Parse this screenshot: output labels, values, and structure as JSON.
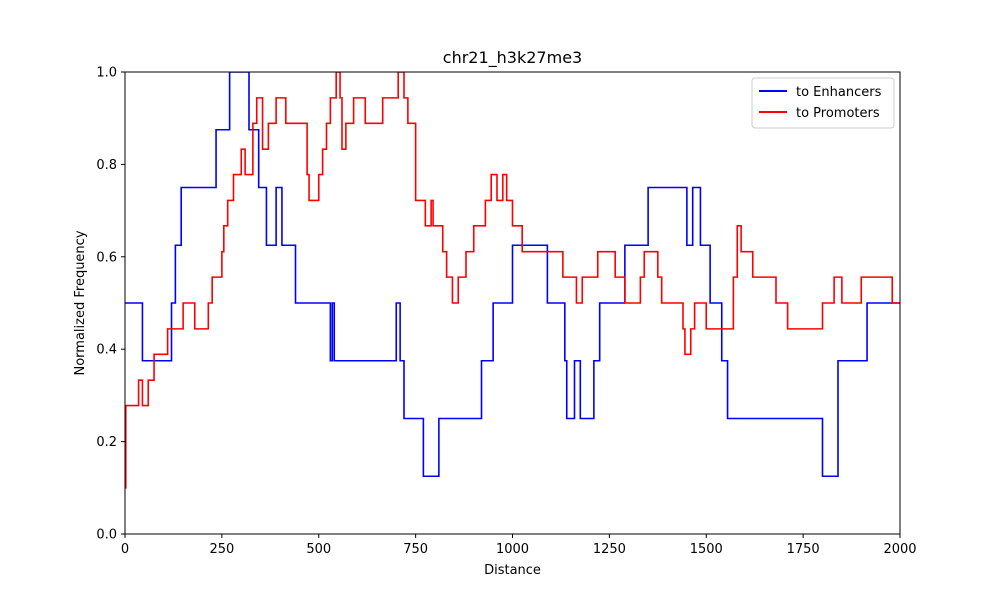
{
  "chart_data": {
    "type": "line",
    "title": "chr21_h3k27me3",
    "xlabel": "Distance",
    "ylabel": "Normalized Frequency",
    "xlim": [
      0,
      2000
    ],
    "ylim": [
      0,
      1.0
    ],
    "xticks": [
      0,
      250,
      500,
      750,
      1000,
      1250,
      1500,
      1750,
      2000
    ],
    "yticks": [
      0.0,
      0.2,
      0.4,
      0.6,
      0.8,
      1.0
    ],
    "ytick_labels": [
      "0.0",
      "0.2",
      "0.4",
      "0.6",
      "0.8",
      "1.0"
    ],
    "grid": false,
    "legend_position": "top-right",
    "series": [
      {
        "name": "to Enhancers",
        "color": "#0000ff",
        "step": true,
        "x": [
          0,
          45,
          120,
          130,
          145,
          235,
          270,
          320,
          345,
          365,
          390,
          405,
          440,
          530,
          535,
          540,
          700,
          710,
          720,
          770,
          810,
          920,
          950,
          1000,
          1090,
          1135,
          1140,
          1160,
          1175,
          1210,
          1225,
          1290,
          1350,
          1450,
          1465,
          1485,
          1510,
          1540,
          1555,
          1800,
          1840,
          1915,
          2000
        ],
        "y": [
          0.5,
          0.375,
          0.5,
          0.625,
          0.75,
          0.875,
          1.0,
          0.875,
          0.75,
          0.625,
          0.75,
          0.625,
          0.5,
          0.375,
          0.5,
          0.375,
          0.5,
          0.375,
          0.25,
          0.125,
          0.25,
          0.375,
          0.5,
          0.625,
          0.5,
          0.375,
          0.25,
          0.375,
          0.25,
          0.375,
          0.5,
          0.625,
          0.75,
          0.625,
          0.75,
          0.625,
          0.5,
          0.375,
          0.25,
          0.125,
          0.375,
          0.5,
          0.5
        ]
      },
      {
        "name": "to Promoters",
        "color": "#ff0000",
        "step": true,
        "x": [
          0,
          2,
          35,
          45,
          60,
          75,
          110,
          150,
          180,
          215,
          225,
          250,
          255,
          265,
          280,
          300,
          310,
          330,
          340,
          355,
          370,
          390,
          415,
          470,
          475,
          500,
          510,
          520,
          530,
          545,
          555,
          560,
          570,
          590,
          620,
          665,
          705,
          720,
          730,
          750,
          775,
          790,
          795,
          820,
          830,
          845,
          860,
          880,
          900,
          930,
          945,
          960,
          975,
          985,
          1000,
          1025,
          1060,
          1130,
          1165,
          1180,
          1220,
          1265,
          1290,
          1330,
          1340,
          1375,
          1385,
          1400,
          1440,
          1445,
          1460,
          1470,
          1500,
          1570,
          1580,
          1590,
          1620,
          1680,
          1710,
          1740,
          1800,
          1830,
          1850,
          1855,
          1880,
          1900,
          1920,
          1980
        ],
        "y": [
          0.1,
          0.278,
          0.333,
          0.278,
          0.333,
          0.389,
          0.444,
          0.5,
          0.444,
          0.5,
          0.556,
          0.611,
          0.667,
          0.722,
          0.778,
          0.833,
          0.778,
          0.889,
          0.944,
          0.833,
          0.889,
          0.944,
          0.889,
          0.778,
          0.722,
          0.778,
          0.833,
          0.889,
          0.944,
          1.0,
          0.944,
          0.833,
          0.889,
          0.944,
          0.889,
          0.944,
          1.0,
          0.944,
          0.889,
          0.722,
          0.667,
          0.722,
          0.667,
          0.611,
          0.556,
          0.5,
          0.556,
          0.611,
          0.667,
          0.722,
          0.778,
          0.722,
          0.778,
          0.722,
          0.667,
          0.611,
          0.611,
          0.556,
          0.5,
          0.556,
          0.611,
          0.556,
          0.5,
          0.556,
          0.611,
          0.556,
          0.5,
          0.5,
          0.444,
          0.389,
          0.444,
          0.5,
          0.444,
          0.556,
          0.667,
          0.611,
          0.556,
          0.5,
          0.444,
          0.444,
          0.5,
          0.556,
          0.5,
          0.5,
          0.5,
          0.556,
          0.556,
          0.5
        ]
      }
    ]
  }
}
